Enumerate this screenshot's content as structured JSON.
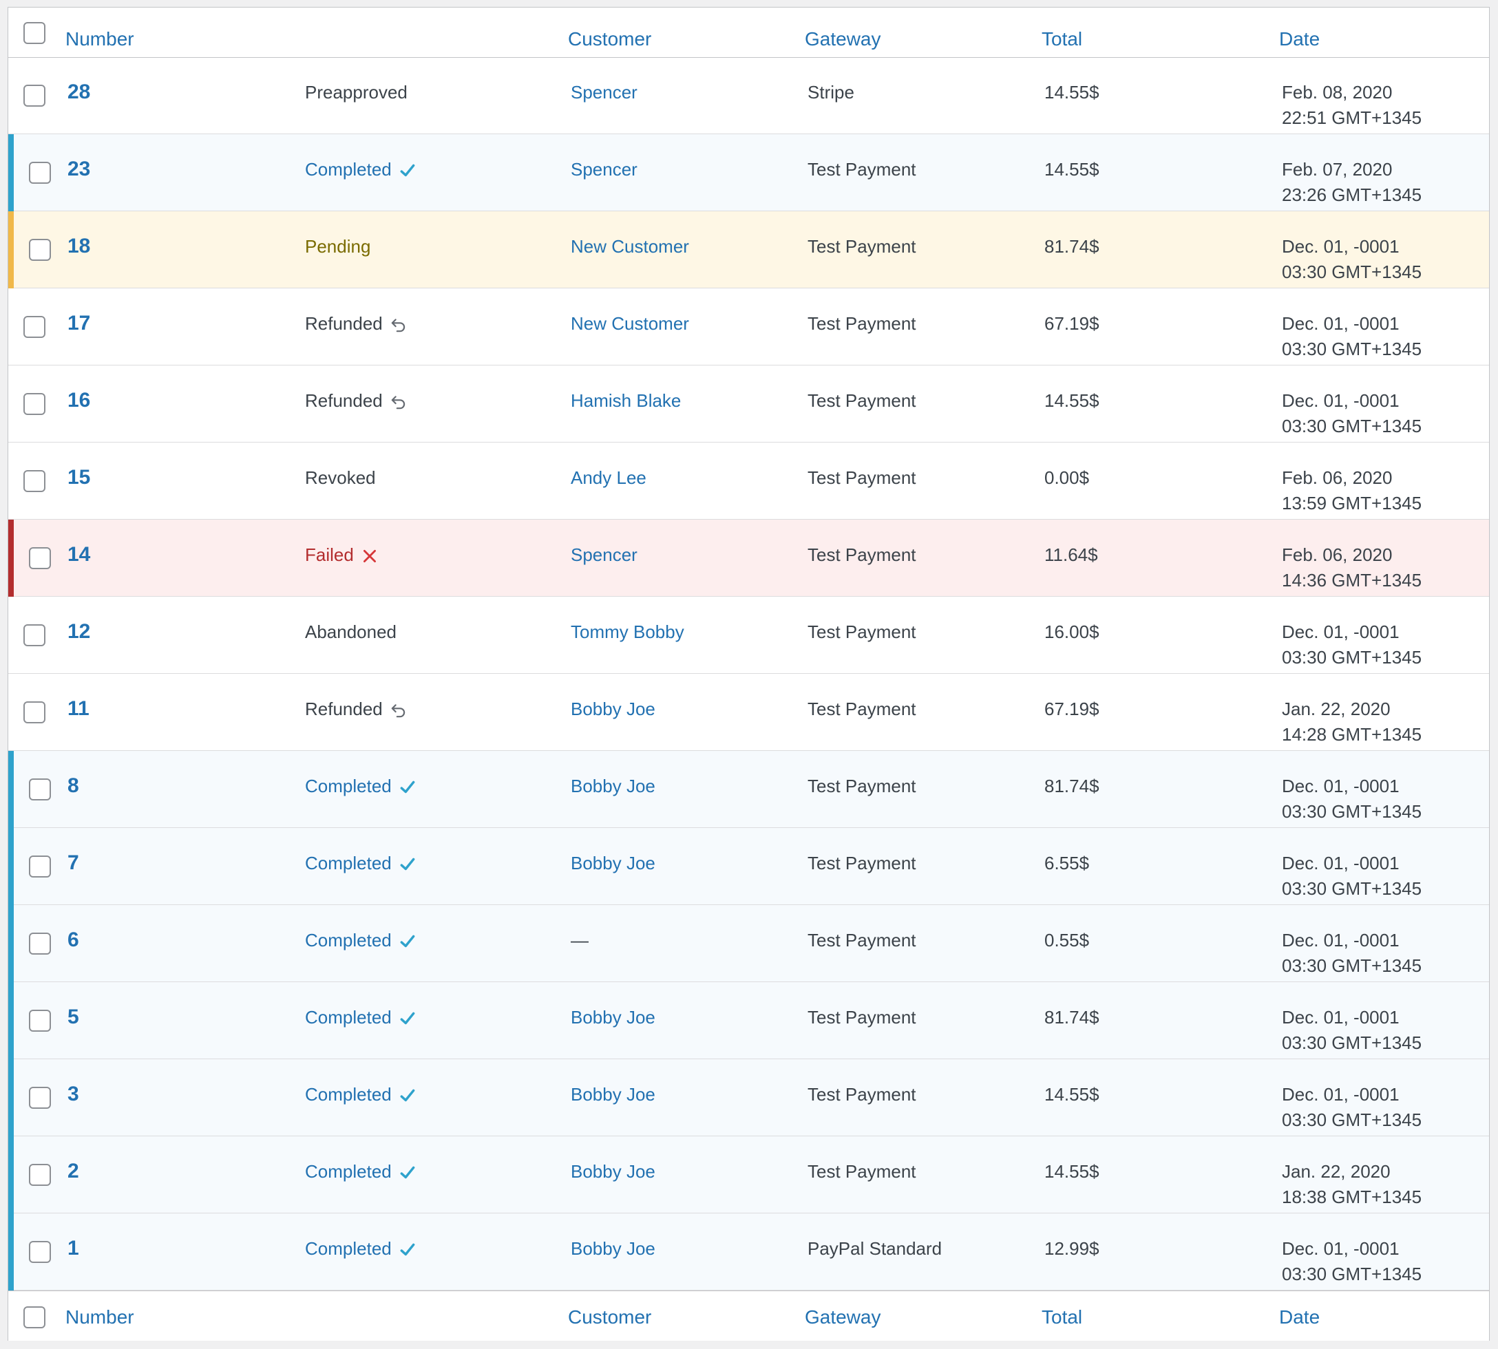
{
  "table": {
    "columns": {
      "number": "Number",
      "customer": "Customer",
      "gateway": "Gateway",
      "total": "Total",
      "date": "Date"
    },
    "colors": {
      "link": "#2271b1",
      "completed_edge": "#2ea2cc",
      "pending_edge": "#f0b849",
      "failed_edge": "#b32d2e",
      "pending_text": "#7a6b00",
      "failed_text": "#b32d2e"
    },
    "rows": [
      {
        "number": "28",
        "status": "Preapproved",
        "status_type": "preapproved",
        "status_icon": "",
        "customer": "Spencer",
        "gateway": "Stripe",
        "total": "14.55$",
        "date_line1": "Feb. 08, 2020",
        "date_line2": "22:51 GMT+1345"
      },
      {
        "number": "23",
        "status": "Completed",
        "status_type": "completed",
        "status_icon": "checkmark-icon",
        "customer": "Spencer",
        "gateway": "Test Payment",
        "total": "14.55$",
        "date_line1": "Feb. 07, 2020",
        "date_line2": "23:26 GMT+1345"
      },
      {
        "number": "18",
        "status": "Pending",
        "status_type": "pending",
        "status_icon": "",
        "customer": "New Customer",
        "gateway": "Test Payment",
        "total": "81.74$",
        "date_line1": "Dec. 01, -0001",
        "date_line2": "03:30 GMT+1345"
      },
      {
        "number": "17",
        "status": "Refunded",
        "status_type": "refunded",
        "status_icon": "undo-icon",
        "customer": "New Customer",
        "gateway": "Test Payment",
        "total": "67.19$",
        "date_line1": "Dec. 01, -0001",
        "date_line2": "03:30 GMT+1345"
      },
      {
        "number": "16",
        "status": "Refunded",
        "status_type": "refunded",
        "status_icon": "undo-icon",
        "customer": "Hamish Blake",
        "gateway": "Test Payment",
        "total": "14.55$",
        "date_line1": "Dec. 01, -0001",
        "date_line2": "03:30 GMT+1345"
      },
      {
        "number": "15",
        "status": "Revoked",
        "status_type": "revoked",
        "status_icon": "",
        "customer": "Andy Lee",
        "gateway": "Test Payment",
        "total": "0.00$",
        "date_line1": "Feb. 06, 2020",
        "date_line2": "13:59 GMT+1345"
      },
      {
        "number": "14",
        "status": "Failed",
        "status_type": "failed",
        "status_icon": "cross-icon",
        "customer": "Spencer",
        "gateway": "Test Payment",
        "total": "11.64$",
        "date_line1": "Feb. 06, 2020",
        "date_line2": "14:36 GMT+1345"
      },
      {
        "number": "12",
        "status": "Abandoned",
        "status_type": "abandoned",
        "status_icon": "",
        "customer": "Tommy Bobby",
        "gateway": "Test Payment",
        "total": "16.00$",
        "date_line1": "Dec. 01, -0001",
        "date_line2": "03:30 GMT+1345"
      },
      {
        "number": "11",
        "status": "Refunded",
        "status_type": "refunded",
        "status_icon": "undo-icon",
        "customer": "Bobby Joe",
        "gateway": "Test Payment",
        "total": "67.19$",
        "date_line1": "Jan. 22, 2020",
        "date_line2": "14:28 GMT+1345"
      },
      {
        "number": "8",
        "status": "Completed",
        "status_type": "completed",
        "status_icon": "checkmark-icon",
        "customer": "Bobby Joe",
        "gateway": "Test Payment",
        "total": "81.74$",
        "date_line1": "Dec. 01, -0001",
        "date_line2": "03:30 GMT+1345"
      },
      {
        "number": "7",
        "status": "Completed",
        "status_type": "completed",
        "status_icon": "checkmark-icon",
        "customer": "Bobby Joe",
        "gateway": "Test Payment",
        "total": "6.55$",
        "date_line1": "Dec. 01, -0001",
        "date_line2": "03:30 GMT+1345"
      },
      {
        "number": "6",
        "status": "Completed",
        "status_type": "completed",
        "status_icon": "checkmark-icon",
        "customer": "—",
        "gateway": "Test Payment",
        "total": "0.55$",
        "date_line1": "Dec. 01, -0001",
        "date_line2": "03:30 GMT+1345"
      },
      {
        "number": "5",
        "status": "Completed",
        "status_type": "completed",
        "status_icon": "checkmark-icon",
        "customer": "Bobby Joe",
        "gateway": "Test Payment",
        "total": "81.74$",
        "date_line1": "Dec. 01, -0001",
        "date_line2": "03:30 GMT+1345"
      },
      {
        "number": "3",
        "status": "Completed",
        "status_type": "completed",
        "status_icon": "checkmark-icon",
        "customer": "Bobby Joe",
        "gateway": "Test Payment",
        "total": "14.55$",
        "date_line1": "Dec. 01, -0001",
        "date_line2": "03:30 GMT+1345"
      },
      {
        "number": "2",
        "status": "Completed",
        "status_type": "completed",
        "status_icon": "checkmark-icon",
        "customer": "Bobby Joe",
        "gateway": "Test Payment",
        "total": "14.55$",
        "date_line1": "Jan. 22, 2020",
        "date_line2": "18:38 GMT+1345"
      },
      {
        "number": "1",
        "status": "Completed",
        "status_type": "completed",
        "status_icon": "checkmark-icon",
        "customer": "Bobby Joe",
        "gateway": "PayPal Standard",
        "total": "12.99$",
        "date_line1": "Dec. 01, -0001",
        "date_line2": "03:30 GMT+1345"
      }
    ]
  }
}
